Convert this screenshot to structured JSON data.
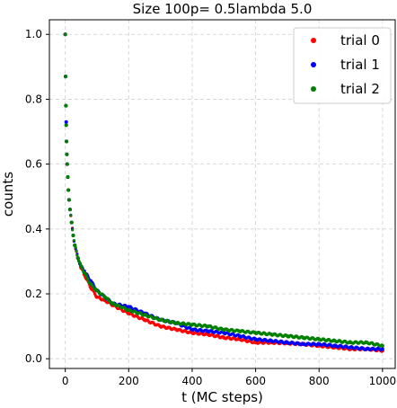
{
  "chart_data": {
    "type": "scatter",
    "title": "Size 100p= 0.5lambda 5.0",
    "xlabel": "t (MC steps)",
    "ylabel": "counts",
    "xlim": [
      -50,
      1040
    ],
    "ylim": [
      -0.03,
      1.045
    ],
    "xticks": [
      0,
      200,
      400,
      600,
      800,
      1000
    ],
    "yticks": [
      0.0,
      0.2,
      0.4,
      0.6,
      0.8,
      1.0
    ],
    "xtick_labels": [
      "0",
      "200",
      "400",
      "600",
      "800",
      "1000"
    ],
    "ytick_labels": [
      "0.0",
      "0.2",
      "0.4",
      "0.6",
      "0.8",
      "1.0"
    ],
    "grid": true,
    "legend_position": "top-right",
    "series": [
      {
        "name": "trial 0",
        "color": "#ff0000",
        "x": [
          0,
          1,
          2,
          3,
          4,
          5,
          6,
          8,
          10,
          12,
          15,
          20,
          25,
          30,
          40,
          50,
          60,
          80,
          100,
          125,
          150,
          200,
          250,
          300,
          350,
          400,
          450,
          500,
          550,
          600,
          650,
          700,
          750,
          800,
          850,
          900,
          950,
          1000
        ],
        "y": [
          1.0,
          0.87,
          0.78,
          0.72,
          0.67,
          0.63,
          0.6,
          0.56,
          0.52,
          0.49,
          0.46,
          0.42,
          0.38,
          0.35,
          0.31,
          0.28,
          0.26,
          0.22,
          0.19,
          0.18,
          0.165,
          0.14,
          0.12,
          0.1,
          0.09,
          0.08,
          0.075,
          0.065,
          0.06,
          0.05,
          0.05,
          0.048,
          0.045,
          0.04,
          0.035,
          0.03,
          0.03,
          0.025
        ]
      },
      {
        "name": "trial 1",
        "color": "#0000ff",
        "x": [
          0,
          1,
          2,
          3,
          4,
          5,
          6,
          8,
          10,
          12,
          15,
          20,
          25,
          30,
          40,
          50,
          60,
          80,
          100,
          125,
          150,
          200,
          250,
          300,
          350,
          400,
          450,
          500,
          550,
          600,
          650,
          700,
          750,
          800,
          850,
          900,
          950,
          1000
        ],
        "y": [
          1.0,
          0.87,
          0.78,
          0.73,
          0.67,
          0.63,
          0.6,
          0.56,
          0.52,
          0.49,
          0.46,
          0.42,
          0.38,
          0.35,
          0.31,
          0.285,
          0.27,
          0.24,
          0.21,
          0.19,
          0.17,
          0.16,
          0.14,
          0.12,
          0.11,
          0.09,
          0.085,
          0.08,
          0.07,
          0.06,
          0.055,
          0.05,
          0.045,
          0.045,
          0.04,
          0.035,
          0.03,
          0.03
        ]
      },
      {
        "name": "trial 2",
        "color": "#008000",
        "x": [
          0,
          1,
          2,
          3,
          4,
          5,
          6,
          8,
          10,
          12,
          15,
          20,
          25,
          30,
          40,
          50,
          60,
          80,
          100,
          125,
          150,
          200,
          250,
          300,
          350,
          400,
          450,
          500,
          550,
          600,
          650,
          700,
          750,
          800,
          850,
          900,
          950,
          1000
        ],
        "y": [
          1.0,
          0.87,
          0.78,
          0.72,
          0.67,
          0.63,
          0.6,
          0.56,
          0.52,
          0.49,
          0.46,
          0.42,
          0.38,
          0.35,
          0.31,
          0.285,
          0.265,
          0.23,
          0.21,
          0.19,
          0.17,
          0.15,
          0.135,
          0.12,
          0.11,
          0.105,
          0.1,
          0.09,
          0.085,
          0.08,
          0.075,
          0.07,
          0.065,
          0.06,
          0.055,
          0.05,
          0.05,
          0.04
        ]
      }
    ]
  }
}
